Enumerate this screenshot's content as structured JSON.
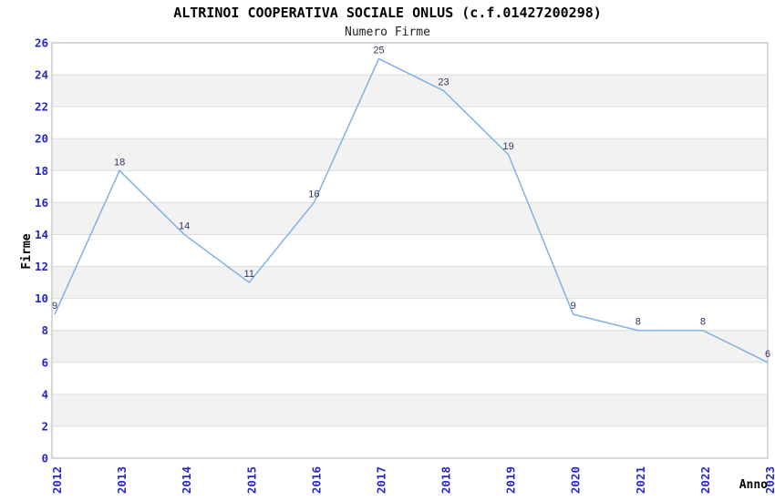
{
  "chart_data": {
    "type": "line",
    "title": "ALTRINOI COOPERATIVA SOCIALE ONLUS (c.f.01427200298)",
    "subtitle": "Numero Firme",
    "xlabel": "Anno",
    "ylabel": "Firme",
    "categories": [
      "2012",
      "2013",
      "2014",
      "2015",
      "2016",
      "2017",
      "2018",
      "2019",
      "2020",
      "2021",
      "2022",
      "2023"
    ],
    "values": [
      9,
      18,
      14,
      11,
      16,
      25,
      23,
      19,
      9,
      8,
      8,
      6
    ],
    "ylim": [
      0,
      26
    ],
    "ytick_step": 2,
    "grid": "horizontal-bands-alternating",
    "legend": "none",
    "colors": {
      "line": "#7eb1e6",
      "tick_label": "#2525cd",
      "point_label": "#333366",
      "band": "#f2f2f2",
      "gridline": "#dcdcdc",
      "plot_border": "#cccccc",
      "title": "#000000",
      "background": "#ffffff"
    }
  }
}
